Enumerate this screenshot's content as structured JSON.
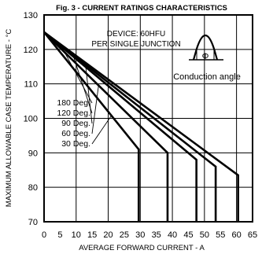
{
  "chart_data": {
    "type": "line",
    "title": "Fig. 3 - CURRENT RATINGS CHARACTERISTICS",
    "xlabel": "AVERAGE FORWARD CURRENT - A",
    "ylabel": "MAXIMUM ALLOWABLE CASE TEMPERATURE - °C",
    "xlim": [
      0,
      65
    ],
    "ylim": [
      70,
      130
    ],
    "xticks": [
      0,
      5,
      10,
      15,
      20,
      25,
      30,
      35,
      40,
      45,
      50,
      55,
      60,
      65
    ],
    "yticks": [
      70,
      80,
      90,
      100,
      110,
      120,
      130
    ],
    "grid": true,
    "annotations": {
      "device": "DEVICE: 60HFU",
      "junction": "PER SINGLE JUNCTION",
      "conduction": "Conduction angle",
      "phi": "Φ"
    },
    "series": [
      {
        "name": "180 Deg.",
        "x": [
          0,
          60.5,
          60.5
        ],
        "y": [
          125,
          83.5,
          70
        ]
      },
      {
        "name": "120 Deg.",
        "x": [
          0,
          53.5,
          53.5
        ],
        "y": [
          125,
          86,
          70
        ]
      },
      {
        "name": "90 Deg.",
        "x": [
          0,
          47.5,
          47.5
        ],
        "y": [
          125,
          88,
          70
        ]
      },
      {
        "name": "60 Deg.",
        "x": [
          0,
          38.5,
          38.5
        ],
        "y": [
          125,
          90,
          70
        ]
      },
      {
        "name": "30 Deg.",
        "x": [
          0,
          29.5,
          29.5
        ],
        "y": [
          125,
          91,
          70
        ]
      }
    ]
  }
}
